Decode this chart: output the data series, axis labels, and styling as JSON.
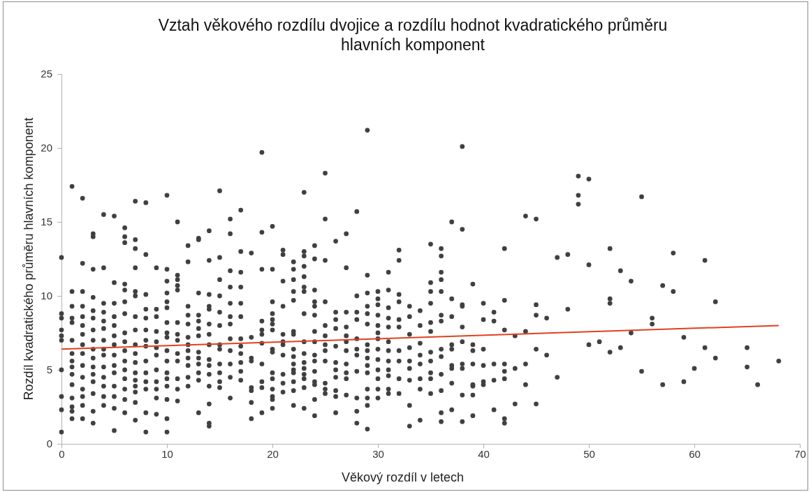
{
  "chart_data": {
    "type": "scatter",
    "title": "Vztah věkového rozdílu dvojice a rozdílu hodnot kvadratického průměru hlavních komponent",
    "xlabel": "Věkový rozdíl v letech",
    "ylabel": "Rozdíl kvadratického průměru hlavních komponent",
    "xlim": [
      0,
      70
    ],
    "xticks": [
      0,
      10,
      20,
      30,
      40,
      50,
      60,
      70
    ],
    "ylim": [
      0,
      25
    ],
    "yticks": [
      0,
      5,
      10,
      15,
      20,
      25
    ],
    "series": [
      {
        "type": "scatter",
        "color": "#404040",
        "marker": "circle",
        "x": [
          0,
          0,
          0,
          0,
          0,
          0,
          0,
          0,
          0,
          0,
          1,
          1,
          1,
          1,
          1,
          1,
          1,
          1,
          1,
          1,
          1,
          1,
          1,
          1,
          1,
          2,
          2,
          2,
          2,
          2,
          2,
          2,
          2,
          2,
          2,
          2,
          2,
          2,
          2,
          2,
          3,
          3,
          3,
          3,
          3,
          3,
          3,
          3,
          3,
          3,
          3,
          3,
          3,
          3,
          3,
          3,
          4,
          4,
          4,
          4,
          4,
          4,
          4,
          4,
          4,
          4,
          4,
          4,
          4,
          4,
          5,
          5,
          5,
          5,
          5,
          5,
          5,
          5,
          5,
          5,
          5,
          5,
          5,
          5,
          6,
          6,
          6,
          6,
          6,
          6,
          6,
          6,
          6,
          6,
          6,
          6,
          6,
          6,
          6,
          6,
          7,
          7,
          7,
          7,
          7,
          7,
          7,
          7,
          7,
          7,
          7,
          7,
          7,
          7,
          7,
          7,
          7,
          8,
          8,
          8,
          8,
          8,
          8,
          8,
          8,
          8,
          8,
          8,
          8,
          8,
          8,
          9,
          9,
          9,
          9,
          9,
          9,
          9,
          9,
          9,
          9,
          9,
          9,
          10,
          10,
          10,
          10,
          10,
          10,
          10,
          10,
          10,
          10,
          10,
          10,
          10,
          10,
          10,
          10,
          10,
          11,
          11,
          11,
          11,
          11,
          11,
          11,
          11,
          11,
          11,
          11,
          11,
          11,
          12,
          12,
          12,
          12,
          12,
          12,
          12,
          12,
          12,
          12,
          12,
          12,
          13,
          13,
          13,
          13,
          13,
          13,
          13,
          13,
          13,
          13,
          13,
          13,
          13,
          14,
          14,
          14,
          14,
          14,
          14,
          14,
          14,
          14,
          14,
          14,
          14,
          14,
          14,
          14,
          15,
          15,
          15,
          15,
          15,
          15,
          15,
          15,
          15,
          15,
          15,
          15,
          16,
          16,
          16,
          16,
          16,
          16,
          16,
          16,
          16,
          16,
          16,
          16,
          17,
          17,
          17,
          17,
          17,
          17,
          17,
          17,
          17,
          17,
          17,
          17,
          18,
          18,
          18,
          18,
          18,
          18,
          18,
          18,
          19,
          19,
          19,
          19,
          19,
          19,
          19,
          19,
          19,
          19,
          19,
          20,
          20,
          20,
          20,
          20,
          20,
          20,
          20,
          20,
          20,
          20,
          20,
          20,
          20,
          20,
          21,
          21,
          21,
          21,
          21,
          21,
          21,
          21,
          21,
          21,
          21,
          22,
          22,
          22,
          22,
          22,
          22,
          22,
          22,
          22,
          22,
          22,
          22,
          22,
          22,
          22,
          23,
          23,
          23,
          23,
          23,
          23,
          23,
          23,
          23,
          23,
          23,
          23,
          23,
          23,
          23,
          23,
          24,
          24,
          24,
          24,
          24,
          24,
          24,
          24,
          24,
          24,
          24,
          24,
          24,
          24,
          24,
          25,
          25,
          25,
          25,
          25,
          25,
          25,
          25,
          25,
          25,
          25,
          25,
          26,
          26,
          26,
          26,
          26,
          26,
          26,
          26,
          26,
          26,
          26,
          27,
          27,
          27,
          27,
          27,
          27,
          27,
          27,
          27,
          27,
          27,
          28,
          28,
          28,
          28,
          28,
          28,
          28,
          28,
          28,
          28,
          28,
          29,
          29,
          29,
          29,
          29,
          29,
          29,
          29,
          29,
          29,
          29,
          29,
          29,
          29,
          29,
          30,
          30,
          30,
          30,
          30,
          30,
          30,
          30,
          30,
          30,
          30,
          30,
          30,
          31,
          31,
          31,
          31,
          31,
          31,
          31,
          31,
          31,
          31,
          31,
          31,
          32,
          32,
          32,
          32,
          32,
          32,
          32,
          32,
          32,
          32,
          33,
          33,
          33,
          33,
          33,
          33,
          33,
          33,
          33,
          34,
          34,
          34,
          34,
          34,
          34,
          34,
          34,
          35,
          35,
          35,
          35,
          35,
          35,
          35,
          35,
          35,
          35,
          35,
          36,
          36,
          36,
          36,
          36,
          36,
          36,
          36,
          36,
          36,
          36,
          36,
          36,
          37,
          37,
          37,
          37,
          37,
          37,
          37,
          37,
          37,
          38,
          38,
          38,
          38,
          38,
          38,
          38,
          38,
          38,
          38,
          39,
          39,
          39,
          39,
          39,
          39,
          39,
          39,
          40,
          40,
          40,
          40,
          40,
          40,
          41,
          41,
          41,
          41,
          41,
          42,
          42,
          42,
          42,
          42,
          42,
          42,
          42,
          43,
          43,
          43,
          44,
          44,
          44,
          44,
          45,
          45,
          45,
          45,
          45,
          46,
          46,
          47,
          47,
          48,
          48,
          49,
          49,
          49,
          50,
          50,
          50,
          51,
          52,
          52,
          52,
          52,
          53,
          53,
          54,
          54,
          55,
          55,
          56,
          56,
          57,
          57,
          58,
          58,
          59,
          59,
          60,
          61,
          61,
          62,
          62,
          65,
          65,
          66,
          68
        ],
        "values": [
          12.6,
          8.8,
          8.5,
          7.7,
          7.3,
          7.0,
          5.0,
          3.2,
          2.3,
          0.8,
          17.4,
          10.3,
          9.3,
          8.5,
          8.2,
          7.0,
          6.1,
          5.6,
          5.2,
          4.7,
          4.0,
          3.1,
          2.5,
          2.2,
          1.7,
          16.6,
          12.2,
          10.3,
          9.3,
          8.6,
          8.0,
          7.4,
          6.7,
          6.1,
          5.3,
          4.5,
          3.7,
          3.2,
          2.6,
          1.7,
          14.2,
          14.0,
          11.8,
          9.9,
          9.0,
          8.5,
          7.7,
          7.0,
          6.4,
          5.8,
          5.2,
          4.7,
          4.2,
          3.4,
          2.2,
          1.4,
          15.5,
          11.9,
          9.5,
          8.9,
          8.3,
          7.8,
          7.0,
          6.4,
          6.0,
          5.2,
          4.5,
          3.9,
          3.2,
          2.6,
          15.4,
          10.9,
          9.5,
          8.6,
          8.0,
          7.3,
          6.7,
          6.0,
          5.3,
          4.8,
          3.9,
          3.2,
          2.4,
          0.9,
          14.6,
          14.0,
          13.6,
          10.8,
          10.4,
          9.6,
          8.8,
          7.5,
          6.9,
          6.3,
          5.6,
          5.0,
          4.4,
          3.7,
          3.0,
          2.1,
          16.4,
          13.8,
          13.2,
          11.9,
          10.3,
          10.0,
          8.6,
          7.7,
          6.7,
          6.1,
          5.5,
          4.8,
          4.3,
          3.9,
          3.5,
          2.8,
          1.6,
          16.3,
          12.8,
          10.1,
          9.1,
          8.5,
          7.7,
          7.0,
          6.6,
          5.6,
          4.8,
          4.2,
          3.7,
          2.1,
          0.8,
          11.9,
          9.1,
          8.6,
          7.6,
          6.9,
          6.5,
          6.0,
          5.0,
          4.2,
          3.7,
          3.1,
          2.0,
          16.8,
          11.8,
          11.0,
          10.2,
          9.6,
          9.2,
          8.2,
          7.5,
          7.2,
          6.3,
          5.6,
          4.8,
          4.4,
          3.9,
          3.0,
          1.7,
          0.8,
          15.0,
          11.4,
          11.1,
          10.7,
          10.4,
          8.2,
          7.4,
          7.0,
          6.1,
          5.6,
          4.4,
          3.7,
          2.9,
          13.4,
          12.3,
          9.3,
          8.7,
          8.1,
          7.2,
          6.7,
          6.3,
          5.8,
          5.3,
          4.5,
          3.9,
          13.9,
          13.8,
          10.2,
          8.7,
          8.3,
          7.8,
          7.3,
          6.2,
          5.8,
          5.4,
          4.8,
          4.3,
          2.1,
          14.4,
          12.4,
          10.1,
          9.3,
          9.1,
          8.1,
          7.4,
          6.7,
          5.7,
          5.3,
          4.7,
          3.9,
          2.7,
          1.4,
          1.2,
          17.1,
          12.6,
          11.1,
          10.0,
          8.9,
          8.0,
          6.7,
          6.4,
          5.4,
          4.8,
          4.2,
          3.8,
          15.2,
          14.2,
          11.7,
          10.6,
          9.5,
          8.6,
          8.1,
          7.1,
          6.3,
          5.4,
          4.5,
          3.1,
          15.8,
          13.0,
          11.6,
          10.6,
          9.5,
          8.6,
          7.1,
          6.6,
          6.1,
          5.5,
          4.9,
          4.3,
          12.9,
          7.2,
          5.8,
          5.6,
          3.8,
          3.6,
          2.8,
          1.7,
          19.7,
          14.3,
          11.8,
          8.3,
          7.7,
          7.4,
          6.8,
          5.4,
          4.2,
          3.8,
          2.1,
          14.7,
          11.8,
          9.6,
          8.8,
          8.4,
          8.1,
          7.7,
          6.4,
          6.2,
          4.8,
          4.4,
          3.7,
          3.2,
          3.0,
          2.4,
          13.1,
          12.8,
          11.0,
          9.3,
          7.4,
          6.9,
          6.7,
          6.0,
          4.7,
          4.1,
          3.5,
          12.3,
          11.8,
          11.1,
          10.3,
          9.7,
          7.6,
          7.4,
          6.4,
          5.9,
          5.4,
          5.0,
          4.8,
          4.2,
          3.6,
          2.6,
          17.0,
          13.0,
          12.7,
          12.0,
          11.3,
          10.6,
          10.3,
          8.8,
          6.9,
          6.1,
          5.5,
          5.1,
          4.7,
          4.4,
          3.8,
          2.4,
          13.4,
          12.5,
          10.4,
          9.6,
          9.3,
          8.7,
          7.6,
          6.9,
          6.0,
          5.6,
          4.9,
          4.2,
          4.0,
          3.0,
          1.9,
          18.3,
          15.2,
          12.4,
          9.6,
          8.0,
          7.3,
          6.7,
          6.3,
          5.6,
          4.1,
          3.7,
          3.4,
          13.7,
          8.9,
          8.4,
          7.8,
          6.6,
          5.5,
          5.0,
          4.5,
          3.6,
          3.2,
          2.1,
          14.2,
          11.9,
          8.9,
          7.9,
          7.3,
          6.9,
          6.3,
          5.4,
          4.8,
          4.4,
          3.3,
          15.7,
          10.0,
          8.9,
          8.4,
          7.1,
          6.4,
          6.0,
          4.9,
          3.1,
          2.2,
          1.4,
          21.2,
          11.4,
          10.2,
          9.3,
          8.8,
          8.1,
          6.7,
          6.3,
          5.8,
          5.3,
          4.8,
          3.7,
          3.1,
          2.6,
          1.0,
          10.3,
          9.8,
          9.4,
          8.7,
          8.0,
          7.5,
          7.1,
          6.4,
          5.7,
          5.0,
          4.4,
          3.7,
          3.1,
          11.6,
          10.4,
          9.2,
          8.5,
          7.9,
          6.9,
          6.3,
          5.6,
          5.0,
          4.6,
          3.7,
          3.4,
          13.1,
          12.4,
          10.1,
          9.6,
          8.4,
          7.9,
          6.3,
          5.6,
          4.4,
          3.4,
          9.3,
          8.6,
          7.4,
          6.5,
          5.6,
          5.1,
          4.3,
          2.6,
          1.2,
          9.0,
          8.0,
          6.8,
          6.0,
          5.4,
          4.4,
          3.7,
          1.6,
          13.5,
          10.9,
          10.3,
          9.5,
          8.2,
          7.6,
          6.2,
          5.6,
          4.8,
          4.4,
          3.4,
          13.2,
          12.7,
          11.6,
          11.1,
          10.3,
          8.7,
          8.3,
          6.4,
          5.9,
          4.7,
          3.6,
          2.1,
          1.5,
          15.0,
          9.8,
          8.6,
          6.7,
          6.4,
          5.3,
          5.1,
          4.1,
          2.3,
          20.1,
          14.5,
          9.4,
          9.3,
          7.9,
          6.9,
          5.4,
          5.1,
          3.3,
          1.5,
          10.8,
          6.7,
          6.3,
          5.4,
          4.0,
          3.9,
          3.3,
          1.9,
          9.5,
          8.4,
          6.4,
          5.3,
          4.2,
          4.0,
          8.9,
          8.3,
          5.4,
          4.3,
          2.3,
          13.2,
          9.7,
          7.7,
          5.4,
          4.9,
          4.4,
          1.7,
          1.4,
          7.3,
          5.1,
          2.7,
          15.4,
          7.6,
          5.4,
          4.0,
          15.2,
          9.4,
          8.7,
          6.4,
          2.7,
          8.5,
          6.0,
          12.6,
          4.5,
          12.8,
          9.1,
          18.1,
          16.8,
          16.2,
          17.9,
          12.1,
          6.7,
          6.9,
          13.2,
          9.8,
          9.5,
          6.2,
          11.7,
          6.5,
          11.0,
          7.5,
          16.7,
          4.9,
          8.5,
          8.1,
          10.7,
          4.0,
          12.9,
          10.3,
          7.2,
          4.2,
          5.1,
          12.4,
          6.5,
          9.6,
          5.8,
          6.5,
          5.2,
          4.0,
          5.6
        ]
      },
      {
        "type": "line",
        "color": "#e2401f",
        "marker": "none",
        "x": [
          0,
          68
        ],
        "values": [
          6.4,
          8.0
        ]
      }
    ]
  }
}
